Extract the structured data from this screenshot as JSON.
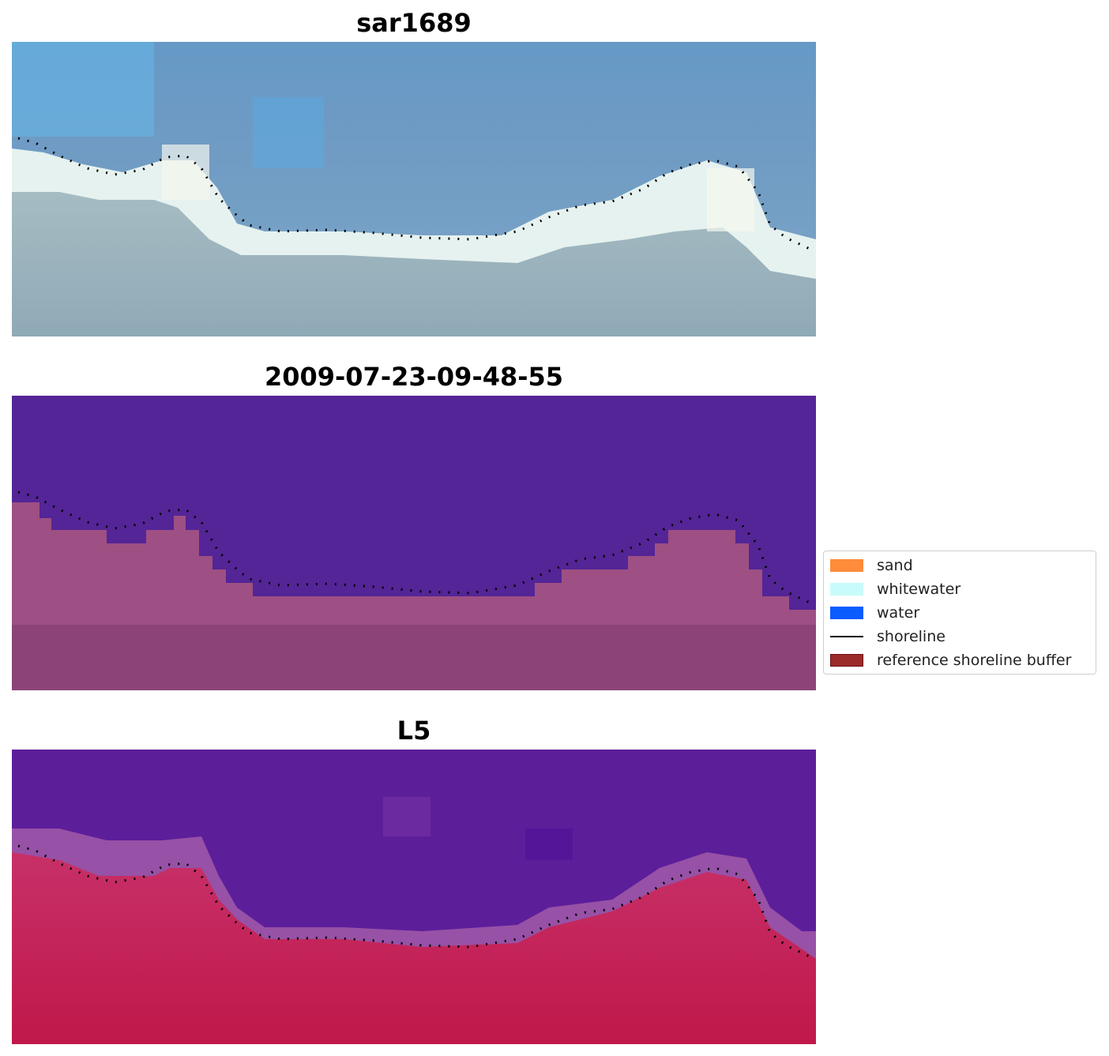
{
  "panels": [
    {
      "title": "sar1689"
    },
    {
      "title": "2009-07-23-09-48-55"
    },
    {
      "title": "L5"
    }
  ],
  "legend": {
    "items": [
      {
        "label": "sand",
        "color": "#ff8c3a",
        "kind": "swatch"
      },
      {
        "label": "whitewater",
        "color": "#c8fbfb",
        "kind": "swatch"
      },
      {
        "label": "water",
        "color": "#0a5cff",
        "kind": "swatch"
      },
      {
        "label": "shoreline",
        "color": "#000000",
        "kind": "line"
      },
      {
        "label": "reference shoreline buffer",
        "color": "#9c2a2a",
        "kind": "swatch"
      }
    ]
  },
  "colors": {
    "sky_blue": "#6aa0c8",
    "whitewater": "#e6f4f2",
    "land_grey_blue": "#94adb8",
    "classified_water": "#532596",
    "classified_land": "#8c4477",
    "mndwi_water": "#5d1e9a",
    "mndwi_land": "#c2184a"
  }
}
